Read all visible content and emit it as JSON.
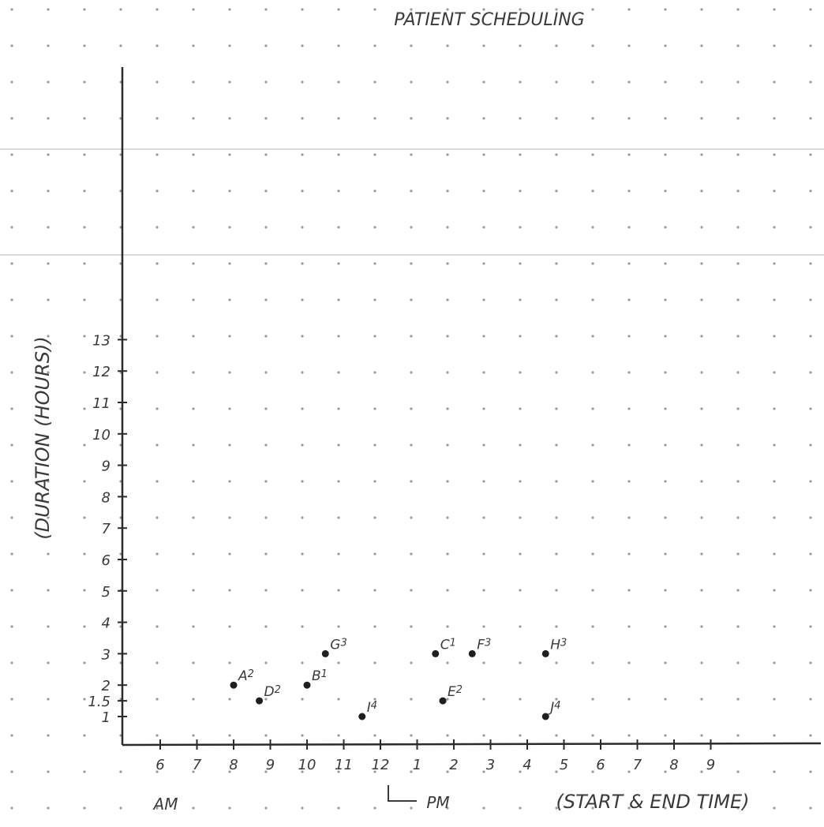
{
  "chart_data": {
    "type": "scatter",
    "title": "PATIENT SCHEDULING",
    "xlabel": "(START & END TIME)",
    "ylabel": "(DURATION (HOURS))",
    "x_tick_labels": [
      "6",
      "7",
      "8",
      "9",
      "10",
      "11",
      "12",
      "1",
      "2",
      "3",
      "4",
      "5",
      "6",
      "7",
      "8",
      "9"
    ],
    "x_tick_values": [
      6,
      7,
      8,
      9,
      10,
      11,
      12,
      13,
      14,
      15,
      16,
      17,
      18,
      19,
      20,
      21
    ],
    "y_tick_labels": [
      "1",
      "1.5",
      "2",
      "3",
      "4",
      "5",
      "6",
      "7",
      "8",
      "9",
      "10",
      "11",
      "12",
      "13"
    ],
    "y_tick_values": [
      1,
      1.5,
      2,
      3,
      4,
      5,
      6,
      7,
      8,
      9,
      10,
      11,
      12,
      13
    ],
    "am_label": "AM",
    "pm_label": "PM",
    "xlim": [
      5,
      23.7
    ],
    "ylim": [
      0,
      13
    ],
    "grid": "dotted",
    "points": [
      {
        "label": "A",
        "sub": "2",
        "x": 8,
        "y": 2
      },
      {
        "label": "B",
        "sub": "1",
        "x": 10,
        "y": 2
      },
      {
        "label": "D",
        "sub": "2",
        "x": 8.7,
        "y": 1.5
      },
      {
        "label": "G",
        "sub": "3",
        "x": 10.5,
        "y": 3
      },
      {
        "label": "I",
        "sub": "4",
        "x": 11.5,
        "y": 1
      },
      {
        "label": "C",
        "sub": "1",
        "x": 13.5,
        "y": 3
      },
      {
        "label": "E",
        "sub": "2",
        "x": 13.7,
        "y": 1.5
      },
      {
        "label": "F",
        "sub": "3",
        "x": 14.5,
        "y": 3
      },
      {
        "label": "H",
        "sub": "3",
        "x": 16.5,
        "y": 3
      },
      {
        "label": "J",
        "sub": "4",
        "x": 16.5,
        "y": 1
      }
    ]
  }
}
